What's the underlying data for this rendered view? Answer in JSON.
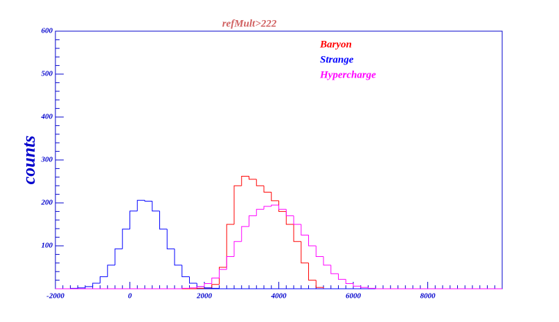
{
  "chart_data": {
    "type": "histogram",
    "title": "refMult>222",
    "ylabel": "counts",
    "bins": [
      -2000,
      -1800,
      -1600,
      -1400,
      -1200,
      -1000,
      -800,
      -600,
      -400,
      -200,
      0,
      200,
      400,
      600,
      800,
      1000,
      1200,
      1400,
      1600,
      1800,
      2000,
      2200,
      2400,
      2600,
      2800,
      3000,
      3200,
      3400,
      3600,
      3800,
      4000,
      4200,
      4400,
      4600,
      4800,
      5000,
      5200,
      5400,
      5600,
      5800,
      6000,
      6200,
      6400,
      6600,
      6800,
      7000,
      7200,
      7400,
      7600,
      7800,
      8000,
      8200,
      8400,
      8600,
      8800,
      9000,
      9200,
      9400,
      9600,
      9800,
      10000
    ],
    "series": [
      {
        "name": "Baryon",
        "color": "#ff0000",
        "values": [
          0,
          0,
          0,
          0,
          0,
          0,
          0,
          0,
          0,
          0,
          0,
          0,
          0,
          0,
          0,
          0,
          0,
          0,
          0,
          1,
          2,
          10,
          50,
          150,
          240,
          262,
          255,
          240,
          225,
          205,
          180,
          150,
          110,
          60,
          20,
          3,
          0,
          0,
          0,
          0,
          0,
          0,
          0,
          0,
          0,
          0,
          0,
          0,
          0,
          0,
          0,
          0,
          0,
          0,
          0,
          0,
          0,
          0,
          0,
          0
        ]
      },
      {
        "name": "Strange",
        "color": "#0000ff",
        "values": [
          0,
          0,
          1,
          2,
          5,
          13,
          28,
          55,
          93,
          139,
          181,
          206,
          204,
          181,
          139,
          93,
          55,
          28,
          13,
          5,
          2,
          1,
          0,
          0,
          0,
          0,
          0,
          0,
          0,
          0,
          0,
          0,
          0,
          0,
          0,
          0,
          0,
          0,
          0,
          0,
          0,
          0,
          0,
          0,
          0,
          0,
          0,
          0,
          0,
          0,
          0,
          0,
          0,
          0,
          0,
          0,
          0,
          0,
          0,
          0
        ]
      },
      {
        "name": "Hypercharge",
        "color": "#ff00ff",
        "values": [
          0,
          0,
          0,
          0,
          0,
          0,
          0,
          0,
          0,
          0,
          0,
          0,
          0,
          0,
          0,
          0,
          0,
          1,
          2,
          5,
          12,
          25,
          45,
          75,
          110,
          145,
          170,
          185,
          192,
          195,
          185,
          170,
          150,
          125,
          100,
          75,
          55,
          35,
          22,
          12,
          6,
          3,
          1,
          0,
          0,
          0,
          0,
          0,
          0,
          0,
          0,
          0,
          0,
          0,
          0,
          0,
          0,
          0,
          0,
          0
        ]
      }
    ],
    "xlim": [
      -2000,
      10000
    ],
    "ylim": [
      0,
      600
    ],
    "xticks": [
      -2000,
      0,
      2000,
      4000,
      6000,
      8000
    ],
    "yticks": [
      100,
      200,
      300,
      400,
      500,
      600
    ],
    "legend": "upper-right"
  }
}
